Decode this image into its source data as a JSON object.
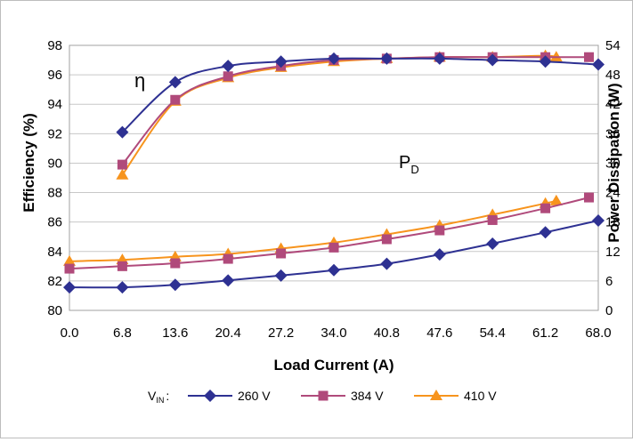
{
  "chart_data": {
    "type": "line",
    "x": [
      6.8,
      13.6,
      20.4,
      27.2,
      34.0,
      40.8,
      47.6,
      54.4,
      61.2,
      68.0
    ],
    "x_ticks": [
      "0.0",
      "6.8",
      "13.6",
      "20.4",
      "27.2",
      "34.0",
      "40.8",
      "47.6",
      "54.4",
      "61.2",
      "68.0"
    ],
    "xlim": [
      0,
      68
    ],
    "xlabel": "Load Current (A)",
    "ylabel_left": "Efficiency (%)",
    "ylabel_right": "Power Dissipation (W)",
    "y_left_ticks": [
      "80",
      "82",
      "84",
      "86",
      "88",
      "90",
      "92",
      "94",
      "96",
      "98"
    ],
    "y_right_ticks": [
      "0",
      "6",
      "12",
      "18",
      "24",
      "30",
      "36",
      "42",
      "48",
      "54"
    ],
    "ylim_left": [
      80,
      98
    ],
    "ylim_right": [
      0,
      54
    ],
    "grid": "horizontal",
    "legend_position": "bottom",
    "legend_prefix": "V",
    "legend_prefix_sub": "IN",
    "legend_suffix": ":",
    "annotations": {
      "efficiency_symbol": "η",
      "power_symbol": "P",
      "power_symbol_sub": "D"
    },
    "series": [
      {
        "name": "260 V",
        "color": "#2E3192",
        "marker": "diamond",
        "efficiency": [
          {
            "x": 6.8,
            "y": 92.1
          },
          {
            "x": 13.6,
            "y": 95.5
          },
          {
            "x": 20.4,
            "y": 96.6
          },
          {
            "x": 27.2,
            "y": 96.9
          },
          {
            "x": 34.0,
            "y": 97.1
          },
          {
            "x": 40.8,
            "y": 97.1
          },
          {
            "x": 47.6,
            "y": 97.1
          },
          {
            "x": 54.4,
            "y": 97.0
          },
          {
            "x": 61.2,
            "y": 96.9
          },
          {
            "x": 68.0,
            "y": 96.7
          }
        ],
        "power": [
          {
            "x": 0.0,
            "y": 4.7
          },
          {
            "x": 6.8,
            "y": 4.7
          },
          {
            "x": 13.6,
            "y": 5.2
          },
          {
            "x": 20.4,
            "y": 6.1
          },
          {
            "x": 27.2,
            "y": 7.1
          },
          {
            "x": 34.0,
            "y": 8.2
          },
          {
            "x": 40.8,
            "y": 9.5
          },
          {
            "x": 47.6,
            "y": 11.4
          },
          {
            "x": 54.4,
            "y": 13.6
          },
          {
            "x": 61.2,
            "y": 15.9
          },
          {
            "x": 68.0,
            "y": 18.3
          }
        ]
      },
      {
        "name": "384 V",
        "color": "#B04A7B",
        "marker": "square",
        "efficiency": [
          {
            "x": 6.8,
            "y": 89.9
          },
          {
            "x": 13.6,
            "y": 94.3
          },
          {
            "x": 20.4,
            "y": 95.9
          },
          {
            "x": 27.2,
            "y": 96.6
          },
          {
            "x": 34.0,
            "y": 97.0
          },
          {
            "x": 40.8,
            "y": 97.1
          },
          {
            "x": 47.6,
            "y": 97.2
          },
          {
            "x": 54.4,
            "y": 97.2
          },
          {
            "x": 61.2,
            "y": 97.2
          },
          {
            "x": 66.8,
            "y": 97.2
          }
        ],
        "power": [
          {
            "x": 0.0,
            "y": 8.5
          },
          {
            "x": 6.8,
            "y": 9.0
          },
          {
            "x": 13.6,
            "y": 9.6
          },
          {
            "x": 20.4,
            "y": 10.5
          },
          {
            "x": 27.2,
            "y": 11.6
          },
          {
            "x": 34.0,
            "y": 12.8
          },
          {
            "x": 40.8,
            "y": 14.5
          },
          {
            "x": 47.6,
            "y": 16.3
          },
          {
            "x": 54.4,
            "y": 18.4
          },
          {
            "x": 61.2,
            "y": 20.8
          },
          {
            "x": 66.8,
            "y": 23.0
          }
        ]
      },
      {
        "name": "410 V",
        "color": "#F7941D",
        "marker": "triangle",
        "efficiency": [
          {
            "x": 6.8,
            "y": 89.2
          },
          {
            "x": 13.6,
            "y": 94.2
          },
          {
            "x": 20.4,
            "y": 95.8
          },
          {
            "x": 27.2,
            "y": 96.5
          },
          {
            "x": 34.0,
            "y": 96.9
          },
          {
            "x": 40.8,
            "y": 97.1
          },
          {
            "x": 47.6,
            "y": 97.2
          },
          {
            "x": 54.4,
            "y": 97.2
          },
          {
            "x": 61.2,
            "y": 97.3
          },
          {
            "x": 62.6,
            "y": 97.2
          }
        ],
        "power": [
          {
            "x": 0.0,
            "y": 10.0
          },
          {
            "x": 6.8,
            "y": 10.3
          },
          {
            "x": 13.6,
            "y": 10.9
          },
          {
            "x": 20.4,
            "y": 11.5
          },
          {
            "x": 27.2,
            "y": 12.6
          },
          {
            "x": 34.0,
            "y": 13.8
          },
          {
            "x": 40.8,
            "y": 15.5
          },
          {
            "x": 47.6,
            "y": 17.3
          },
          {
            "x": 54.4,
            "y": 19.5
          },
          {
            "x": 61.2,
            "y": 21.8
          },
          {
            "x": 62.6,
            "y": 22.3
          }
        ]
      }
    ]
  }
}
